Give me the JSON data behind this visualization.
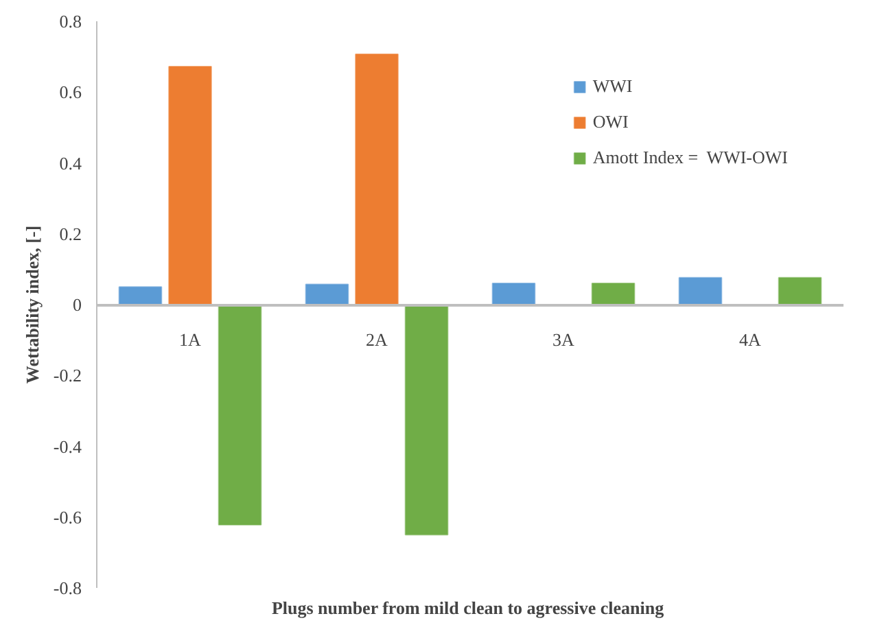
{
  "chart_data": {
    "type": "bar",
    "xlabel": "Plugs number  from mild clean to agressive cleaning",
    "ylabel": "Wettability index, [-]",
    "categories": [
      "1A",
      "2A",
      "3A",
      "4A"
    ],
    "series": [
      {
        "name": "WWI",
        "color": "#5b9bd5",
        "values": [
          0.05,
          0.057,
          0.06,
          0.076
        ]
      },
      {
        "name": "OWI",
        "color": "#ed7d31",
        "values": [
          0.672,
          0.707,
          0,
          0
        ]
      },
      {
        "name": "Amott Index =  WWI-OWI",
        "color": "#70ad47",
        "values": [
          -0.622,
          -0.65,
          0.06,
          0.076
        ]
      }
    ],
    "ylim": [
      -0.8,
      0.8
    ],
    "yticks": [
      -0.8,
      -0.6,
      -0.4,
      -0.2,
      0,
      0.2,
      0.4,
      0.6,
      0.8
    ],
    "grid": false,
    "legend": "top right"
  }
}
